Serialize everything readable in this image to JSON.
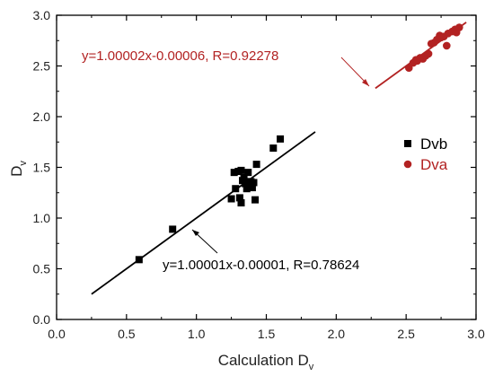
{
  "chart_data": {
    "type": "scatter",
    "xlabel": "Calculation D",
    "xlabel_sub": "v",
    "ylabel": "D",
    "ylabel_sub": "v",
    "xlim": [
      0.0,
      3.0
    ],
    "ylim": [
      0.0,
      3.0
    ],
    "xticks": [
      "0.0",
      "0.5",
      "1.0",
      "1.5",
      "2.0",
      "2.5",
      "3.0"
    ],
    "yticks": [
      "0.0",
      "0.5",
      "1.0",
      "1.5",
      "2.0",
      "2.5",
      "3.0"
    ],
    "grid": false,
    "legend_position": "right",
    "series": [
      {
        "name": "Dvb",
        "marker": "square",
        "color": "#000000",
        "points": [
          [
            0.59,
            0.59
          ],
          [
            0.83,
            0.89
          ],
          [
            1.25,
            1.19
          ],
          [
            1.27,
            1.45
          ],
          [
            1.28,
            1.29
          ],
          [
            1.3,
            1.46
          ],
          [
            1.31,
            1.2
          ],
          [
            1.32,
            1.15
          ],
          [
            1.32,
            1.47
          ],
          [
            1.33,
            1.37
          ],
          [
            1.34,
            1.4
          ],
          [
            1.35,
            1.34
          ],
          [
            1.36,
            1.29
          ],
          [
            1.37,
            1.45
          ],
          [
            1.38,
            1.32
          ],
          [
            1.39,
            1.36
          ],
          [
            1.4,
            1.3
          ],
          [
            1.41,
            1.35
          ],
          [
            1.42,
            1.18
          ],
          [
            1.43,
            1.53
          ],
          [
            1.55,
            1.69
          ],
          [
            1.6,
            1.78
          ]
        ],
        "fit": {
          "x_range": [
            0.25,
            1.85
          ],
          "equation": "y=1.00001x-0.00001,   R=0.78624",
          "line_color": "#000000"
        }
      },
      {
        "name": "Dva",
        "marker": "circle",
        "color": "#b22222",
        "points": [
          [
            2.52,
            2.48
          ],
          [
            2.55,
            2.53
          ],
          [
            2.57,
            2.56
          ],
          [
            2.58,
            2.55
          ],
          [
            2.6,
            2.58
          ],
          [
            2.62,
            2.57
          ],
          [
            2.64,
            2.6
          ],
          [
            2.66,
            2.62
          ],
          [
            2.68,
            2.72
          ],
          [
            2.7,
            2.73
          ],
          [
            2.72,
            2.76
          ],
          [
            2.74,
            2.8
          ],
          [
            2.75,
            2.78
          ],
          [
            2.77,
            2.79
          ],
          [
            2.79,
            2.7
          ],
          [
            2.8,
            2.82
          ],
          [
            2.83,
            2.84
          ],
          [
            2.85,
            2.86
          ],
          [
            2.86,
            2.83
          ],
          [
            2.88,
            2.88
          ]
        ],
        "fit": {
          "x_range": [
            2.28,
            2.93
          ],
          "equation": "y=1.00002x-0.00006,   R=0.92278",
          "line_color": "#b22222"
        }
      }
    ]
  }
}
